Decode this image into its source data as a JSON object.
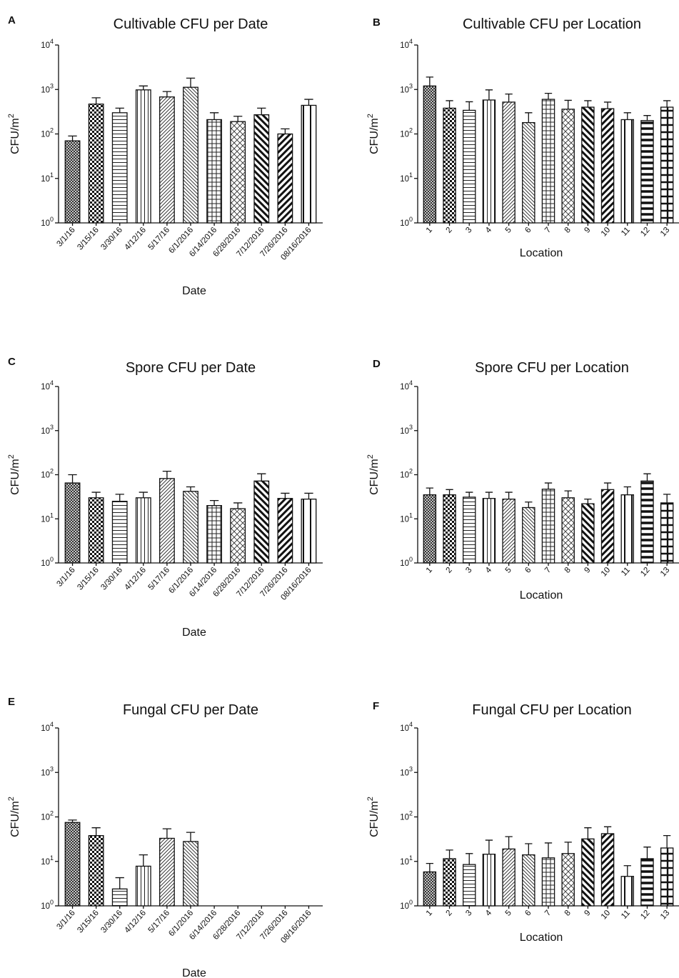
{
  "chart_data": [
    {
      "panel": "A",
      "type": "bar",
      "title": "Cultivable CFU per Date",
      "xlabel": "Date",
      "ylabel": "CFU/m",
      "ylabel_sup": "2",
      "yscale": "log",
      "ylim": [
        1,
        10000
      ],
      "yticks": [
        {
          "base": "10",
          "exp": "0"
        },
        {
          "base": "10",
          "exp": "1"
        },
        {
          "base": "10",
          "exp": "2"
        },
        {
          "base": "10",
          "exp": "3"
        },
        {
          "base": "10",
          "exp": "4"
        }
      ],
      "categories": [
        "3/1/16",
        "3/15/16",
        "3/30/16",
        "4/12/16",
        "5/17/16",
        "6/1/2016",
        "6/14/2016",
        "6/28/2016",
        "7/12/2016",
        "7/26/2016",
        "08/16/2016"
      ],
      "values": [
        70,
        470,
        300,
        980,
        680,
        1120,
        210,
        190,
        270,
        100,
        440
      ],
      "errors": [
        90,
        650,
        380,
        1200,
        900,
        1800,
        300,
        250,
        380,
        130,
        600
      ],
      "patterns": [
        "p1",
        "p2",
        "p3",
        "p4",
        "p5",
        "p6",
        "p7",
        "p8",
        "p9",
        "p10",
        "p11"
      ]
    },
    {
      "panel": "B",
      "type": "bar",
      "title": "Cultivable CFU per Location",
      "xlabel": "Location",
      "ylabel": "CFU/m",
      "ylabel_sup": "2",
      "yscale": "log",
      "ylim": [
        1,
        10000
      ],
      "yticks": [
        {
          "base": "10",
          "exp": "0"
        },
        {
          "base": "10",
          "exp": "1"
        },
        {
          "base": "10",
          "exp": "2"
        },
        {
          "base": "10",
          "exp": "3"
        },
        {
          "base": "10",
          "exp": "4"
        }
      ],
      "categories": [
        "1",
        "2",
        "3",
        "4",
        "5",
        "6",
        "7",
        "8",
        "9",
        "10",
        "11",
        "12",
        "13"
      ],
      "values": [
        1200,
        380,
        340,
        580,
        520,
        180,
        600,
        360,
        400,
        370,
        210,
        200,
        400
      ],
      "errors": [
        1900,
        560,
        530,
        980,
        790,
        300,
        820,
        570,
        560,
        520,
        300,
        260,
        560
      ],
      "patterns": [
        "p1",
        "p2",
        "p3",
        "p4",
        "p5",
        "p6",
        "p7",
        "p8",
        "p9",
        "p10",
        "p11",
        "p12",
        "p13"
      ]
    },
    {
      "panel": "C",
      "type": "bar",
      "title": "Spore CFU per Date",
      "xlabel": "Date",
      "ylabel": "CFU/m",
      "ylabel_sup": "2",
      "yscale": "log",
      "ylim": [
        1,
        10000
      ],
      "yticks": [
        {
          "base": "10",
          "exp": "0"
        },
        {
          "base": "10",
          "exp": "1"
        },
        {
          "base": "10",
          "exp": "2"
        },
        {
          "base": "10",
          "exp": "3"
        },
        {
          "base": "10",
          "exp": "4"
        }
      ],
      "categories": [
        "3/1/16",
        "3/15/16",
        "3/30/16",
        "4/12/16",
        "5/17/16",
        "6/1/2016",
        "6/14/2016",
        "6/28/2016",
        "7/12/2016",
        "7/26/2016",
        "08/16/2016"
      ],
      "values": [
        65,
        30,
        25,
        30,
        82,
        42,
        20,
        17,
        72,
        29,
        28
      ],
      "errors": [
        100,
        40,
        36,
        40,
        120,
        53,
        26,
        23,
        105,
        38,
        38
      ],
      "patterns": [
        "p1",
        "p2",
        "p3",
        "p4",
        "p5",
        "p6",
        "p7",
        "p8",
        "p9",
        "p10",
        "p11"
      ]
    },
    {
      "panel": "D",
      "type": "bar",
      "title": "Spore CFU per Location",
      "xlabel": "Location",
      "ylabel": "CFU/m",
      "ylabel_sup": "2",
      "yscale": "log",
      "ylim": [
        1,
        10000
      ],
      "yticks": [
        {
          "base": "10",
          "exp": "0"
        },
        {
          "base": "10",
          "exp": "1"
        },
        {
          "base": "10",
          "exp": "2"
        },
        {
          "base": "10",
          "exp": "3"
        },
        {
          "base": "10",
          "exp": "4"
        }
      ],
      "categories": [
        "1",
        "2",
        "3",
        "4",
        "5",
        "6",
        "7",
        "8",
        "9",
        "10",
        "11",
        "12",
        "13"
      ],
      "values": [
        35,
        35,
        31,
        29,
        28,
        18,
        47,
        30,
        22,
        46,
        35,
        72,
        23
      ],
      "errors": [
        50,
        46,
        40,
        40,
        40,
        24,
        65,
        43,
        28,
        65,
        53,
        105,
        36
      ],
      "patterns": [
        "p1",
        "p2",
        "p3",
        "p4",
        "p5",
        "p6",
        "p7",
        "p8",
        "p9",
        "p10",
        "p11",
        "p12",
        "p13"
      ]
    },
    {
      "panel": "E",
      "type": "bar",
      "title": "Fungal CFU per Date",
      "xlabel": "Date",
      "ylabel": "CFU/m",
      "ylabel_sup": "2",
      "yscale": "log",
      "ylim": [
        1,
        10000
      ],
      "yticks": [
        {
          "base": "10",
          "exp": "0"
        },
        {
          "base": "10",
          "exp": "1"
        },
        {
          "base": "10",
          "exp": "2"
        },
        {
          "base": "10",
          "exp": "3"
        },
        {
          "base": "10",
          "exp": "4"
        }
      ],
      "categories": [
        "3/1/16",
        "3/15/16",
        "3/30/16",
        "4/12/16",
        "5/17/16",
        "6/1/2016",
        "6/14/2016",
        "6/28/2016",
        "7/12/2016",
        "7/26/2016",
        "08/16/2016"
      ],
      "values": [
        75,
        38,
        2.4,
        7.8,
        33,
        28,
        null,
        null,
        null,
        null,
        null
      ],
      "errors": [
        85,
        57,
        4.3,
        14,
        54,
        45,
        null,
        null,
        null,
        null,
        null
      ],
      "patterns": [
        "p1",
        "p2",
        "p3",
        "p4",
        "p5",
        "p6",
        "p7",
        "p8",
        "p9",
        "p10",
        "p11"
      ]
    },
    {
      "panel": "F",
      "type": "bar",
      "title": "Fungal CFU per Location",
      "xlabel": "Location",
      "ylabel": "CFU/m",
      "ylabel_sup": "2",
      "yscale": "log",
      "ylim": [
        1,
        10000
      ],
      "yticks": [
        {
          "base": "10",
          "exp": "0"
        },
        {
          "base": "10",
          "exp": "1"
        },
        {
          "base": "10",
          "exp": "2"
        },
        {
          "base": "10",
          "exp": "3"
        },
        {
          "base": "10",
          "exp": "4"
        }
      ],
      "categories": [
        "1",
        "2",
        "3",
        "4",
        "5",
        "6",
        "7",
        "8",
        "9",
        "10",
        "11",
        "12",
        "13"
      ],
      "values": [
        5.8,
        11.5,
        8.5,
        14.5,
        19,
        14,
        12,
        15,
        32,
        42,
        4.6,
        11.5,
        20
      ],
      "errors": [
        9,
        18,
        15,
        30,
        36,
        25,
        26,
        27,
        57,
        60,
        8,
        21,
        38
      ],
      "patterns": [
        "p1",
        "p2",
        "p3",
        "p4",
        "p5",
        "p6",
        "p7",
        "p8",
        "p9",
        "p10",
        "p11",
        "p12",
        "p13"
      ]
    }
  ]
}
